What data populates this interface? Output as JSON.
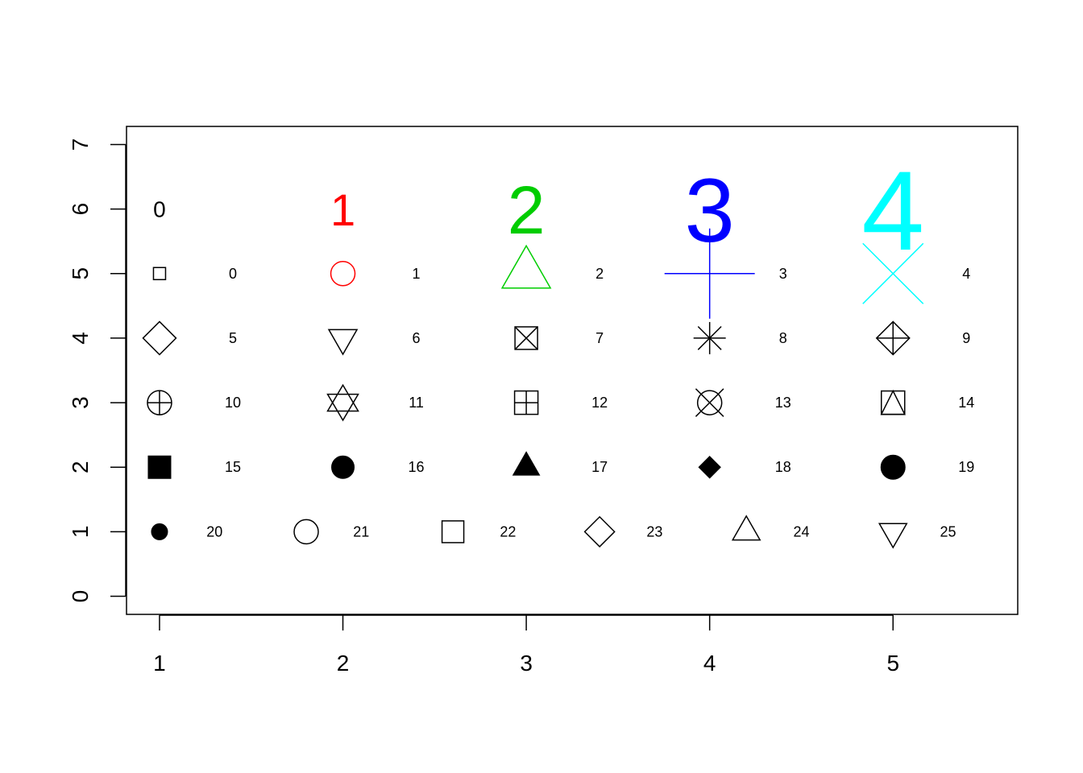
{
  "chart_data": {
    "type": "scatter",
    "title": "",
    "xlabel": "",
    "ylabel": "",
    "xlim": [
      0.82,
      5.68
    ],
    "ylim": [
      -0.28,
      7.28
    ],
    "grid": false,
    "x_ticks": [
      {
        "value": 1,
        "label": "1"
      },
      {
        "value": 2,
        "label": "2"
      },
      {
        "value": 3,
        "label": "3"
      },
      {
        "value": 4,
        "label": "4"
      },
      {
        "value": 5,
        "label": "5"
      }
    ],
    "y_ticks": [
      {
        "value": 0,
        "label": "0"
      },
      {
        "value": 1,
        "label": "1"
      },
      {
        "value": 2,
        "label": "2"
      },
      {
        "value": 3,
        "label": "3"
      },
      {
        "value": 4,
        "label": "4"
      },
      {
        "value": 5,
        "label": "5"
      },
      {
        "value": 6,
        "label": "6"
      },
      {
        "value": 7,
        "label": "7"
      }
    ],
    "size_labels": [
      {
        "x": 1,
        "y": 6,
        "text": "0",
        "cex": 1,
        "color": "#000000"
      },
      {
        "x": 2,
        "y": 6,
        "text": "1",
        "cex": 2,
        "color": "#FF0000"
      },
      {
        "x": 3,
        "y": 6,
        "text": "2",
        "cex": 3,
        "color": "#00CD00"
      },
      {
        "x": 4,
        "y": 6,
        "text": "3",
        "cex": 4,
        "color": "#0000FF"
      },
      {
        "x": 5,
        "y": 6,
        "text": "4",
        "cex": 5,
        "color": "#00FFFF"
      }
    ],
    "size_points": [
      {
        "x": 1,
        "y": 5,
        "pch": 0,
        "cex": 1,
        "color": "#000000",
        "label": "0",
        "label_x": 1.4
      },
      {
        "x": 2,
        "y": 5,
        "pch": 1,
        "cex": 2,
        "color": "#FF0000",
        "label": "1",
        "label_x": 2.4
      },
      {
        "x": 3,
        "y": 5,
        "pch": 2,
        "cex": 3,
        "color": "#00CD00",
        "label": "2",
        "label_x": 3.4
      },
      {
        "x": 4,
        "y": 5,
        "pch": 3,
        "cex": 4,
        "color": "#0000FF",
        "label": "3",
        "label_x": 4.4
      },
      {
        "x": 5,
        "y": 5,
        "pch": 4,
        "cex": 5,
        "color": "#00FFFF",
        "label": "4",
        "label_x": 5.4
      }
    ],
    "symbols": [
      {
        "x": 1,
        "y": 4,
        "pch": 5,
        "label": "5",
        "label_x": 1.4
      },
      {
        "x": 2,
        "y": 4,
        "pch": 6,
        "label": "6",
        "label_x": 2.4
      },
      {
        "x": 3,
        "y": 4,
        "pch": 7,
        "label": "7",
        "label_x": 3.4
      },
      {
        "x": 4,
        "y": 4,
        "pch": 8,
        "label": "8",
        "label_x": 4.4
      },
      {
        "x": 5,
        "y": 4,
        "pch": 9,
        "label": "9",
        "label_x": 5.4
      },
      {
        "x": 1,
        "y": 3,
        "pch": 10,
        "label": "10",
        "label_x": 1.4
      },
      {
        "x": 2,
        "y": 3,
        "pch": 11,
        "label": "11",
        "label_x": 2.4
      },
      {
        "x": 3,
        "y": 3,
        "pch": 12,
        "label": "12",
        "label_x": 3.4
      },
      {
        "x": 4,
        "y": 3,
        "pch": 13,
        "label": "13",
        "label_x": 4.4
      },
      {
        "x": 5,
        "y": 3,
        "pch": 14,
        "label": "14",
        "label_x": 5.4
      },
      {
        "x": 1,
        "y": 2,
        "pch": 15,
        "label": "15",
        "label_x": 1.4
      },
      {
        "x": 2,
        "y": 2,
        "pch": 16,
        "label": "16",
        "label_x": 2.4
      },
      {
        "x": 3,
        "y": 2,
        "pch": 17,
        "label": "17",
        "label_x": 3.4
      },
      {
        "x": 4,
        "y": 2,
        "pch": 18,
        "label": "18",
        "label_x": 4.4
      },
      {
        "x": 5,
        "y": 2,
        "pch": 19,
        "label": "19",
        "label_x": 5.4
      },
      {
        "x": 1,
        "y": 1,
        "pch": 20,
        "label": "20",
        "label_x": 1.3
      },
      {
        "x": 1.8,
        "y": 1,
        "pch": 21,
        "label": "21",
        "label_x": 2.1
      },
      {
        "x": 2.6,
        "y": 1,
        "pch": 22,
        "label": "22",
        "label_x": 2.9
      },
      {
        "x": 3.4,
        "y": 1,
        "pch": 23,
        "label": "23",
        "label_x": 3.7
      },
      {
        "x": 4.2,
        "y": 1,
        "pch": 24,
        "label": "24",
        "label_x": 4.5
      },
      {
        "x": 5,
        "y": 1,
        "pch": 25,
        "label": "25",
        "label_x": 5.3
      }
    ]
  }
}
